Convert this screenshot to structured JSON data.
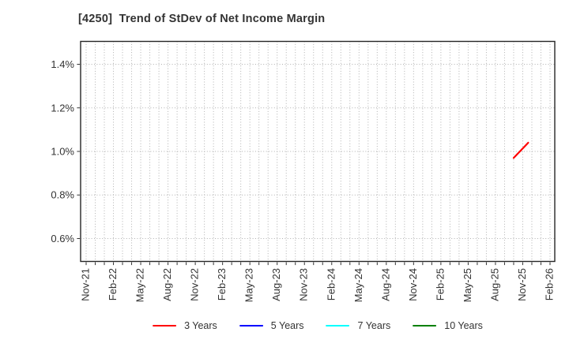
{
  "chart_data": {
    "type": "line",
    "title": "[4250]  Trend of StDev of Net Income Margin",
    "x_axis": {
      "tick_labels": [
        "Nov-21",
        "Feb-22",
        "May-22",
        "Aug-22",
        "Nov-22",
        "Feb-23",
        "May-23",
        "Aug-23",
        "Nov-23",
        "Feb-24",
        "May-24",
        "Aug-24",
        "Nov-24",
        "Feb-25",
        "May-25",
        "Aug-25",
        "Nov-25",
        "Feb-26"
      ],
      "months_between_labels": 3,
      "total_months_span": 51
    },
    "y_axis": {
      "tick_labels": [
        "0.6%",
        "0.8%",
        "1.0%",
        "1.2%",
        "1.4%"
      ],
      "tick_values": [
        0.6,
        0.8,
        1.0,
        1.2,
        1.4
      ],
      "unit": "%",
      "ylim": [
        0.495,
        1.505
      ]
    },
    "series": [
      {
        "name": "3 Years",
        "color": "#ff0000",
        "points": [
          {
            "x_label": "Oct-25",
            "x_month": 47.0,
            "y": 0.97
          },
          {
            "x_label": "Nov-25",
            "x_month": 48.6,
            "y": 1.04
          }
        ]
      },
      {
        "name": "5 Years",
        "color": "#0000ff",
        "points": []
      },
      {
        "name": "7 Years",
        "color": "#00ffff",
        "points": []
      },
      {
        "name": "10 Years",
        "color": "#008000",
        "points": []
      }
    ],
    "legend": {
      "position": "bottom-center",
      "entries": [
        "3 Years",
        "5 Years",
        "7 Years",
        "10 Years"
      ]
    },
    "grid": {
      "show": true,
      "line_style": "dotted"
    },
    "colors": {
      "background": "#ffffff",
      "axis_border": "#262626",
      "gridline": "#b0b0b0",
      "text": "#333333"
    }
  }
}
